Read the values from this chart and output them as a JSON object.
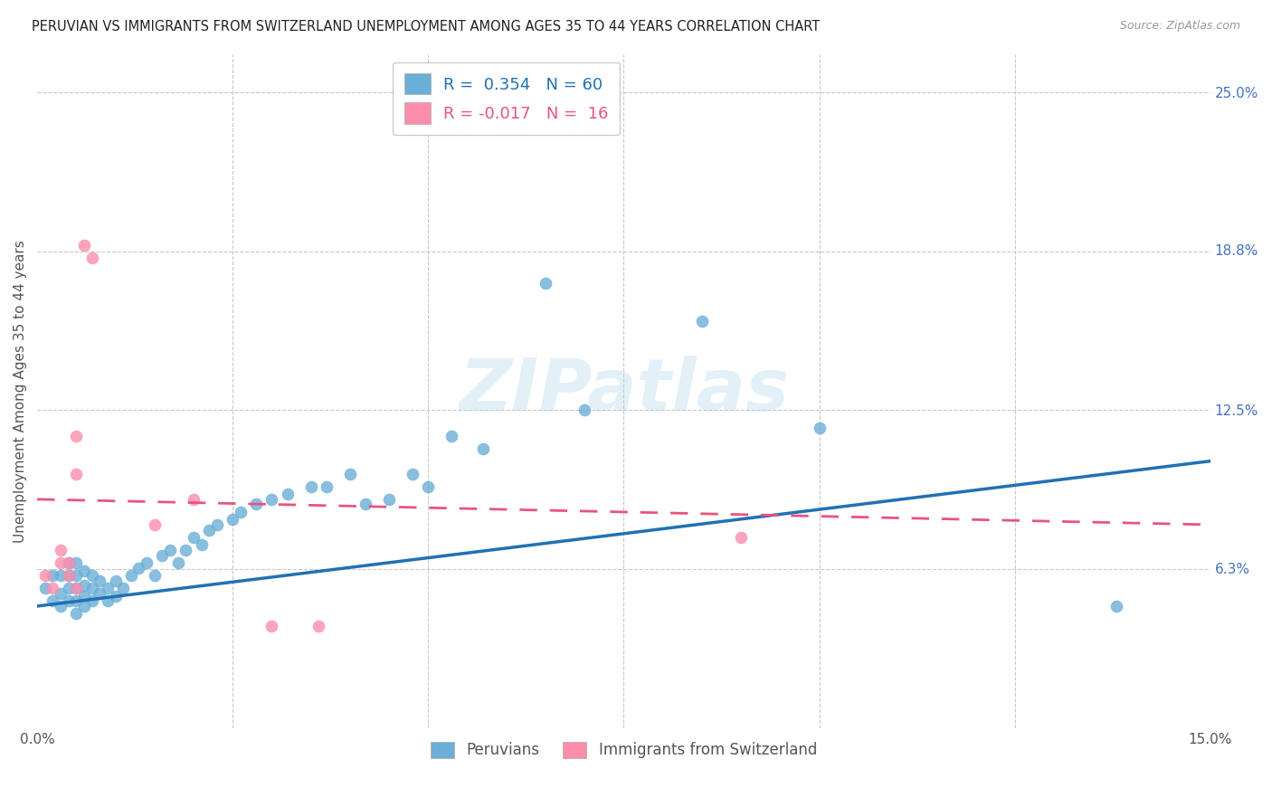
{
  "title": "PERUVIAN VS IMMIGRANTS FROM SWITZERLAND UNEMPLOYMENT AMONG AGES 35 TO 44 YEARS CORRELATION CHART",
  "source": "Source: ZipAtlas.com",
  "ylabel": "Unemployment Among Ages 35 to 44 years",
  "xlim": [
    0.0,
    0.15
  ],
  "ylim": [
    0.0,
    0.265
  ],
  "xticks": [
    0.0,
    0.025,
    0.05,
    0.075,
    0.1,
    0.125,
    0.15
  ],
  "xticklabels": [
    "0.0%",
    "",
    "",
    "",
    "",
    "",
    "15.0%"
  ],
  "right_yticks": [
    0.0,
    0.063,
    0.125,
    0.188,
    0.25
  ],
  "right_yticklabels": [
    "",
    "6.3%",
    "12.5%",
    "18.8%",
    "25.0%"
  ],
  "blue_R": "0.354",
  "blue_N": "60",
  "pink_R": "-0.017",
  "pink_N": "16",
  "blue_color": "#6baed6",
  "pink_color": "#fc8eac",
  "blue_line_color": "#2171b5",
  "pink_line_color": "#e75480",
  "legend_label_blue": "Peruvians",
  "legend_label_pink": "Immigrants from Switzerland",
  "blue_scatter_x": [
    0.001,
    0.002,
    0.002,
    0.003,
    0.003,
    0.003,
    0.004,
    0.004,
    0.004,
    0.004,
    0.005,
    0.005,
    0.005,
    0.005,
    0.005,
    0.006,
    0.006,
    0.006,
    0.006,
    0.007,
    0.007,
    0.007,
    0.008,
    0.008,
    0.009,
    0.009,
    0.01,
    0.01,
    0.011,
    0.012,
    0.013,
    0.014,
    0.015,
    0.016,
    0.017,
    0.018,
    0.019,
    0.02,
    0.021,
    0.022,
    0.023,
    0.025,
    0.026,
    0.028,
    0.03,
    0.032,
    0.035,
    0.037,
    0.04,
    0.042,
    0.045,
    0.048,
    0.05,
    0.053,
    0.057,
    0.065,
    0.07,
    0.085,
    0.1,
    0.138
  ],
  "blue_scatter_y": [
    0.055,
    0.05,
    0.06,
    0.048,
    0.053,
    0.06,
    0.05,
    0.055,
    0.06,
    0.065,
    0.045,
    0.05,
    0.055,
    0.06,
    0.065,
    0.048,
    0.052,
    0.056,
    0.062,
    0.05,
    0.055,
    0.06,
    0.053,
    0.058,
    0.05,
    0.055,
    0.052,
    0.058,
    0.055,
    0.06,
    0.063,
    0.065,
    0.06,
    0.068,
    0.07,
    0.065,
    0.07,
    0.075,
    0.072,
    0.078,
    0.08,
    0.082,
    0.085,
    0.088,
    0.09,
    0.092,
    0.095,
    0.095,
    0.1,
    0.088,
    0.09,
    0.1,
    0.095,
    0.115,
    0.11,
    0.175,
    0.125,
    0.16,
    0.118,
    0.048
  ],
  "pink_scatter_x": [
    0.001,
    0.002,
    0.003,
    0.003,
    0.004,
    0.004,
    0.005,
    0.005,
    0.005,
    0.006,
    0.007,
    0.015,
    0.02,
    0.03,
    0.036,
    0.09
  ],
  "pink_scatter_y": [
    0.06,
    0.055,
    0.065,
    0.07,
    0.06,
    0.065,
    0.055,
    0.1,
    0.115,
    0.19,
    0.185,
    0.08,
    0.09,
    0.04,
    0.04,
    0.075
  ],
  "blue_trend_x": [
    0.0,
    0.15
  ],
  "blue_trend_y": [
    0.048,
    0.105
  ],
  "pink_trend_x": [
    0.0,
    0.15
  ],
  "pink_trend_y": [
    0.09,
    0.08
  ],
  "watermark": "ZIPatlas",
  "background_color": "#ffffff",
  "grid_color": "#c8c8c8"
}
